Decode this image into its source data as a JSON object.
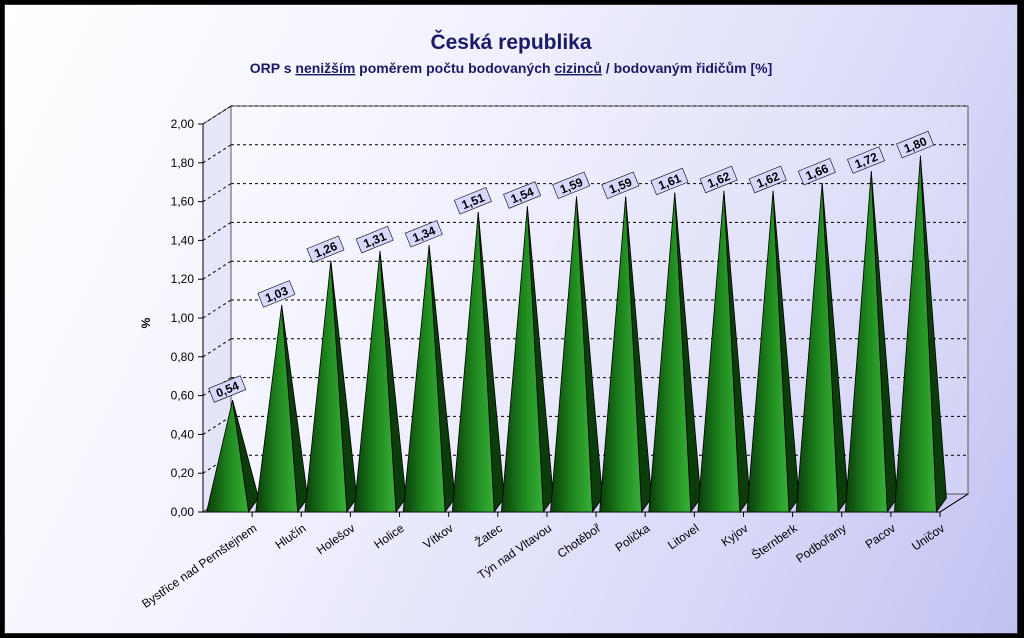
{
  "chart_data": {
    "type": "bar",
    "title": "Česká republika",
    "subtitle": {
      "parts": [
        {
          "text": "ORP s ",
          "underline": false
        },
        {
          "text": "nenižším",
          "underline": true
        },
        {
          "text": " poměrem počtu bodovaných ",
          "underline": false
        },
        {
          "text": "cizinců",
          "underline": true
        },
        {
          "text": " / bodovaným řidičům [%]",
          "underline": false
        }
      ]
    },
    "ylabel": "%",
    "xlabel": "",
    "ylim": [
      0,
      2
    ],
    "yticks": [
      "0,00",
      "0,20",
      "0,40",
      "0,60",
      "0,80",
      "1,00",
      "1,20",
      "1,40",
      "1,60",
      "1,80",
      "2,00"
    ],
    "grid": true,
    "bar_shape": "pyramid",
    "colors": {
      "bar": "#1f8a1f",
      "bar_dark": "#0a3d0a",
      "bar_light": "#39b039",
      "label_bg": "#d8d8ff"
    },
    "categories": [
      "Bystřice nad Pernštejnem",
      "Hlučín",
      "Holešov",
      "Holice",
      "Vítkov",
      "Žatec",
      "Týn nad Vltavou",
      "Chotěboř",
      "Polička",
      "Litovel",
      "Kyjov",
      "Šternberk",
      "Podbořany",
      "Pacov",
      "Uničov"
    ],
    "values": [
      0.54,
      1.03,
      1.26,
      1.31,
      1.34,
      1.51,
      1.54,
      1.59,
      1.59,
      1.61,
      1.62,
      1.62,
      1.66,
      1.72,
      1.8
    ],
    "data_labels": [
      "0,54",
      "1,03",
      "1,26",
      "1,31",
      "1,34",
      "1,51",
      "1,54",
      "1,59",
      "1,59",
      "1,61",
      "1,62",
      "1,62",
      "1,66",
      "1,72",
      "1,80"
    ]
  }
}
